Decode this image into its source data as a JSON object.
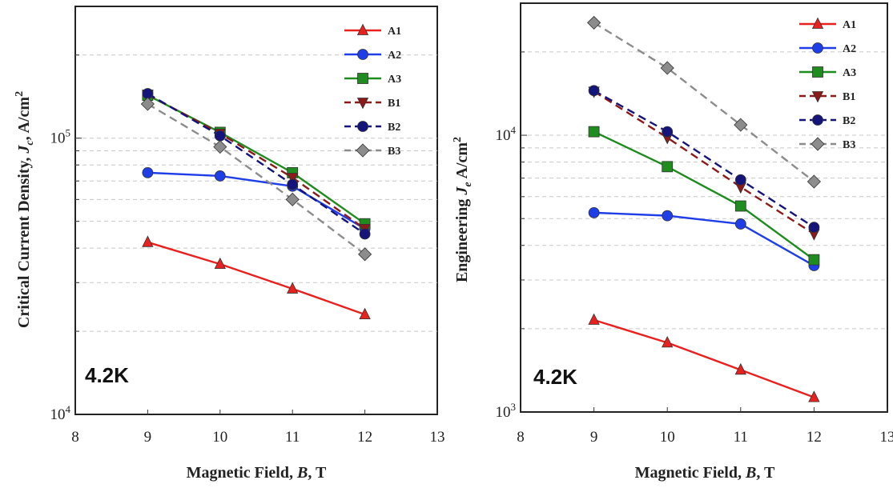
{
  "chart_data": [
    {
      "type": "line",
      "xlabel": "Magnetic Field, B, T",
      "ylabel": "Critical Current Density, Jc, A/cm2",
      "yscale": "log",
      "xlim": [
        8,
        13
      ],
      "ylim": [
        10000,
        300000
      ],
      "x_ticks": [
        "8",
        "9",
        "10",
        "11",
        "12",
        "13"
      ],
      "y_ticks": [
        {
          "value": 10000,
          "base": "10",
          "exp": "4"
        },
        {
          "value": 100000,
          "base": "10",
          "exp": "5"
        }
      ],
      "annotation": "4.2K",
      "legend_position": "top-right",
      "x": [
        9,
        10,
        11,
        12
      ],
      "series": [
        {
          "name": "A1",
          "color": "#e8211f",
          "marker": "triangle",
          "dash": "solid",
          "values": [
            42000,
            35000,
            28500,
            23000
          ]
        },
        {
          "name": "A2",
          "color": "#1f3ee8",
          "marker": "circle",
          "dash": "solid",
          "values": [
            75000,
            73000,
            67000,
            47000
          ]
        },
        {
          "name": "A3",
          "color": "#1e8c1e",
          "marker": "square",
          "dash": "solid",
          "values": [
            143000,
            105000,
            75000,
            49000
          ]
        },
        {
          "name": "B1",
          "color": "#8b1a1a",
          "marker": "triangle-down",
          "dash": "dashed",
          "values": [
            144000,
            104000,
            72000,
            47000
          ]
        },
        {
          "name": "B2",
          "color": "#14147a",
          "marker": "circle",
          "dash": "dashed",
          "values": [
            145000,
            102000,
            68000,
            45000
          ]
        },
        {
          "name": "B3",
          "color": "#8c8c8c",
          "marker": "diamond",
          "dash": "dashed",
          "values": [
            133000,
            93000,
            60000,
            38000
          ]
        }
      ]
    },
    {
      "type": "line",
      "xlabel": "Magnetic Field, B, T",
      "ylabel": "Engineering Je A/cm2",
      "yscale": "log",
      "xlim": [
        8,
        13
      ],
      "ylim": [
        1000,
        30000
      ],
      "x_ticks": [
        "8",
        "9",
        "10",
        "11",
        "12",
        "13"
      ],
      "y_ticks": [
        {
          "value": 1000,
          "base": "10",
          "exp": "3"
        },
        {
          "value": 10000,
          "base": "10",
          "exp": "4"
        }
      ],
      "annotation": "4.2K",
      "legend_position": "top-right",
      "x": [
        9,
        10,
        11,
        12
      ],
      "series": [
        {
          "name": "A1",
          "color": "#e8211f",
          "marker": "triangle",
          "dash": "solid",
          "values": [
            2150,
            1780,
            1420,
            1130
          ]
        },
        {
          "name": "A2",
          "color": "#1f3ee8",
          "marker": "circle",
          "dash": "solid",
          "values": [
            5250,
            5120,
            4780,
            3380
          ]
        },
        {
          "name": "A3",
          "color": "#1e8c1e",
          "marker": "square",
          "dash": "solid",
          "values": [
            10300,
            7700,
            5550,
            3550
          ]
        },
        {
          "name": "B1",
          "color": "#8b1a1a",
          "marker": "triangle-down",
          "dash": "dashed",
          "values": [
            14400,
            9800,
            6500,
            4400
          ]
        },
        {
          "name": "B2",
          "color": "#14147a",
          "marker": "circle",
          "dash": "dashed",
          "values": [
            14500,
            10300,
            6900,
            4650
          ]
        },
        {
          "name": "B3",
          "color": "#8c8c8c",
          "marker": "diamond",
          "dash": "dashed",
          "values": [
            25500,
            17500,
            10900,
            6800
          ]
        }
      ]
    }
  ]
}
